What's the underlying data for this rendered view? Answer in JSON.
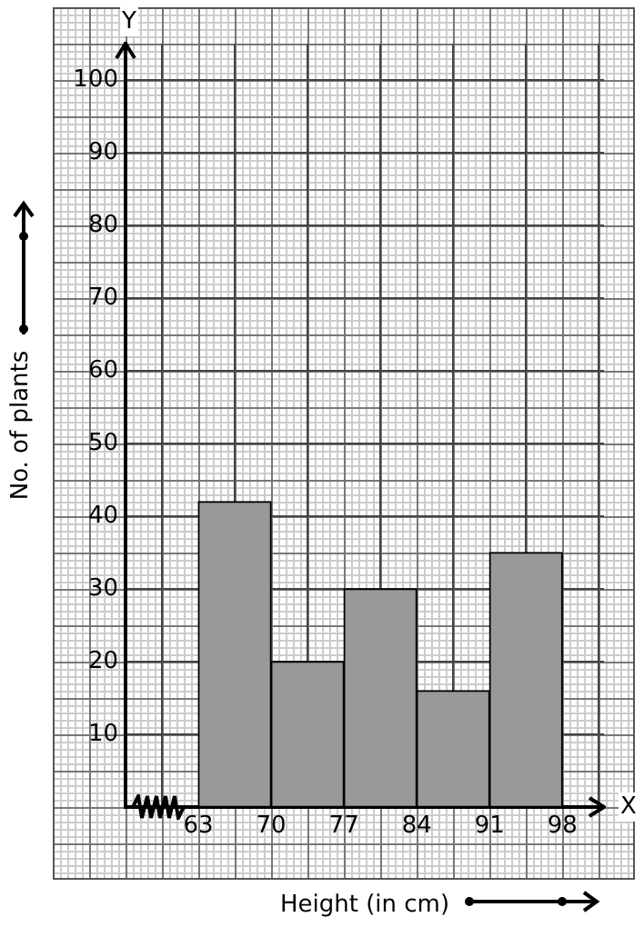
{
  "chart_data": {
    "type": "histogram",
    "xlabel": "Height (in cm)",
    "ylabel": "No. of plants",
    "bins": [
      63,
      70,
      77,
      84,
      91,
      98
    ],
    "values": [
      42,
      20,
      30,
      16,
      35
    ],
    "color": "#999999",
    "xlim": [
      56,
      102
    ],
    "xticks": [
      63,
      70,
      77,
      84,
      91,
      98
    ],
    "ylim": [
      0,
      105
    ],
    "yticks": [
      10,
      20,
      30,
      40,
      50,
      60,
      70,
      80,
      90,
      100
    ],
    "grid": true,
    "annotations": [
      "X",
      "Y"
    ]
  }
}
